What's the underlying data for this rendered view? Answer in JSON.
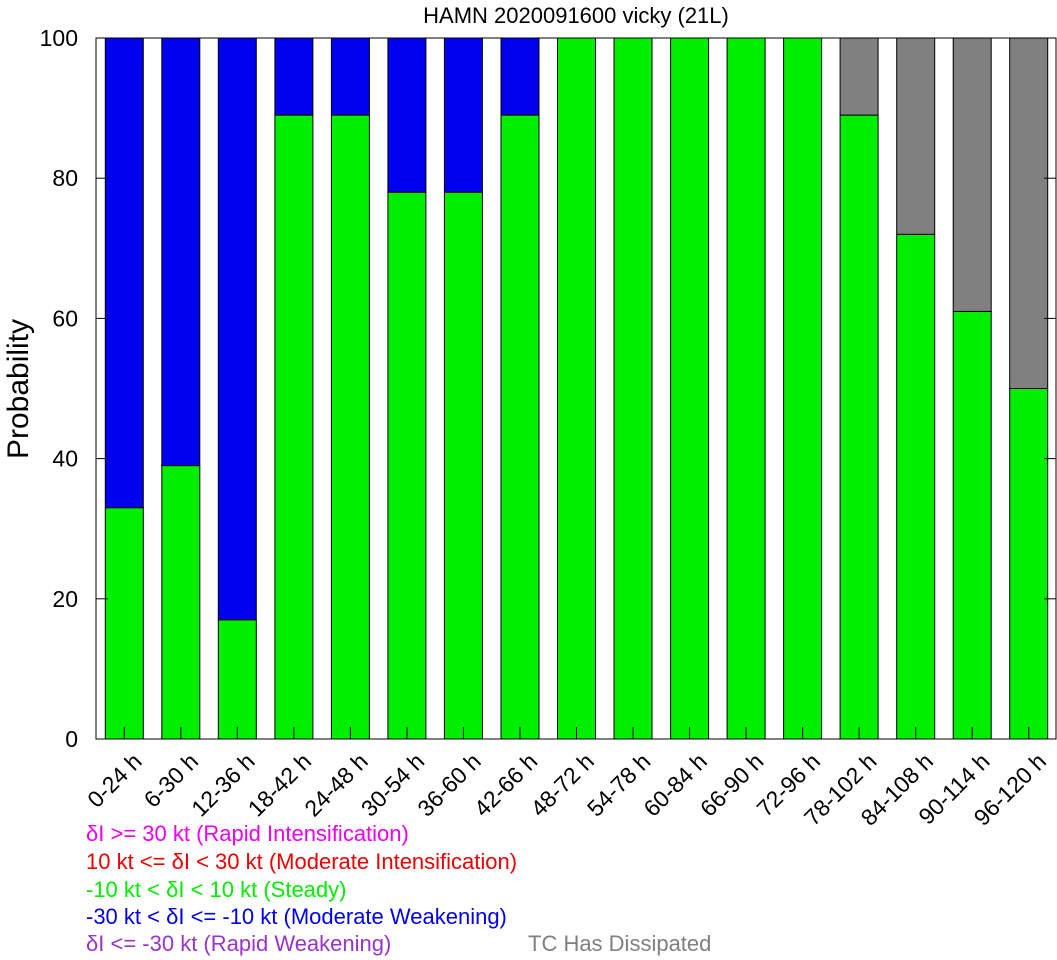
{
  "chart_data": {
    "type": "bar",
    "stacked": true,
    "title": "HAMN 2020091600 vicky (21L)",
    "xlabel": "",
    "ylabel": "Probability",
    "ylim": [
      0,
      100
    ],
    "yticks": [
      0,
      20,
      40,
      60,
      80,
      100
    ],
    "grid": false,
    "categories": [
      "0-24 h",
      "6-30 h",
      "12-36 h",
      "18-42 h",
      "24-48 h",
      "30-54 h",
      "36-60 h",
      "42-66 h",
      "48-72 h",
      "54-78 h",
      "60-84 h",
      "66-90 h",
      "72-96 h",
      "78-102 h",
      "84-108 h",
      "90-114 h",
      "96-120 h"
    ],
    "series": [
      {
        "name": "-10 kt < δI < 10 kt (Steady)",
        "color": "#00ee00",
        "values": [
          33,
          39,
          17,
          89,
          89,
          78,
          78,
          89,
          100,
          100,
          100,
          100,
          100,
          89,
          72,
          61,
          50
        ]
      },
      {
        "name": "-30 kt < δI <= -10 kt (Moderate Weakening)",
        "color": "#0000ee",
        "values": [
          67,
          61,
          83,
          11,
          11,
          22,
          22,
          11,
          0,
          0,
          0,
          0,
          0,
          0,
          0,
          0,
          0
        ]
      },
      {
        "name": "TC Has Dissipated",
        "color": "#808080",
        "values": [
          0,
          0,
          0,
          0,
          0,
          0,
          0,
          0,
          0,
          0,
          0,
          0,
          0,
          11,
          28,
          39,
          50
        ]
      }
    ]
  },
  "legend": {
    "rapid_intensification": {
      "label": "δI >= 30 kt (Rapid Intensification)",
      "color": "#ee00ee"
    },
    "moderate_intensification": {
      "label": "10 kt <= δI < 30 kt (Moderate Intensification)",
      "color": "#ee0000"
    },
    "steady": {
      "label": "-10 kt < δI < 10 kt (Steady)",
      "color": "#00ee00"
    },
    "moderate_weakening": {
      "label": "-30 kt < δI <= -10 kt (Moderate Weakening)",
      "color": "#0000ee"
    },
    "rapid_weakening": {
      "label": "δI <= -30 kt (Rapid Weakening)",
      "color": "#9a32cd"
    },
    "dissipated": {
      "label": "TC Has Dissipated",
      "color": "#808080"
    }
  }
}
